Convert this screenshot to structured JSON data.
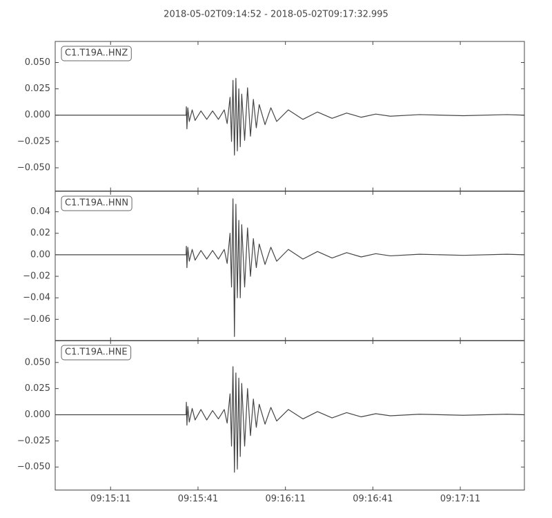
{
  "chart_data": [
    {
      "type": "line",
      "title": "2018-05-02T09:14:52  -  2018-05-02T09:17:32.995",
      "label": "C1.T19A..HNZ",
      "x": [
        0,
        44.9,
        45,
        45.2,
        45.5,
        46,
        47,
        48,
        50,
        52,
        54,
        56,
        58,
        59,
        60,
        60.5,
        61,
        61.5,
        62,
        62.5,
        63,
        63.5,
        64,
        65,
        66,
        67,
        68,
        69,
        70,
        72,
        74,
        76,
        80,
        85,
        90,
        95,
        100,
        105,
        110,
        115,
        125,
        140,
        155,
        160.995
      ],
      "values": [
        0,
        0,
        0.008,
        -0.013,
        0.007,
        -0.006,
        0.005,
        -0.005,
        0.004,
        -0.004,
        0.004,
        -0.004,
        0.005,
        -0.008,
        0.017,
        -0.025,
        0.033,
        -0.038,
        0.035,
        -0.034,
        0.025,
        -0.03,
        0.02,
        -0.024,
        0.026,
        -0.02,
        0.015,
        -0.012,
        0.01,
        -0.009,
        0.007,
        -0.006,
        0.005,
        -0.004,
        0.003,
        -0.003,
        0.002,
        -0.002,
        0.001,
        -0.001,
        0.0005,
        -0.0005,
        0.0005,
        0
      ],
      "color": "#444444",
      "xlim": [
        0,
        160.995
      ],
      "xticks": [
        19,
        49,
        79,
        109,
        139
      ],
      "ylim": [
        -0.072,
        0.07
      ],
      "yticks": [
        {
          "value": -0.05,
          "label": "−0.050"
        },
        {
          "value": -0.025,
          "label": "−0.025"
        },
        {
          "value": 0,
          "label": "0.000"
        },
        {
          "value": 0.025,
          "label": "0.025"
        },
        {
          "value": 0.05,
          "label": "0.050"
        }
      ]
    },
    {
      "type": "line",
      "label": "C1.T19A..HNN",
      "x": [
        0,
        44.9,
        45,
        45.2,
        45.5,
        46,
        47,
        48,
        50,
        52,
        54,
        56,
        58,
        59,
        60,
        60.5,
        61,
        61.5,
        62,
        62.5,
        63,
        63.5,
        64,
        65,
        66,
        67,
        68,
        69,
        70,
        72,
        74,
        76,
        80,
        85,
        90,
        95,
        100,
        105,
        110,
        115,
        125,
        140,
        155,
        160.995
      ],
      "values": [
        0,
        0,
        0.008,
        -0.012,
        0.007,
        -0.006,
        0.005,
        -0.005,
        0.004,
        -0.004,
        0.004,
        -0.004,
        0.005,
        -0.008,
        0.02,
        -0.03,
        0.052,
        -0.076,
        0.047,
        -0.04,
        0.032,
        -0.04,
        0.028,
        -0.03,
        0.025,
        -0.02,
        0.015,
        -0.012,
        0.01,
        -0.009,
        0.007,
        -0.006,
        0.005,
        -0.004,
        0.003,
        -0.003,
        0.002,
        -0.002,
        0.001,
        -0.001,
        0.0005,
        -0.0005,
        0.0005,
        0
      ],
      "color": "#444444",
      "xlim": [
        0,
        160.995
      ],
      "xticks": [
        19,
        49,
        79,
        109,
        139
      ],
      "ylim": [
        -0.08,
        0.059
      ],
      "yticks": [
        {
          "value": -0.06,
          "label": "−0.06"
        },
        {
          "value": -0.04,
          "label": "−0.04"
        },
        {
          "value": -0.02,
          "label": "−0.02"
        },
        {
          "value": 0,
          "label": "0.00"
        },
        0.02,
        0.04
      ]
    },
    {
      "type": "line",
      "label": "C1.T19A..HNE",
      "x": [
        0,
        44.9,
        45,
        45.2,
        45.5,
        46,
        47,
        48,
        50,
        52,
        54,
        56,
        58,
        59,
        60,
        60.5,
        61,
        61.5,
        62,
        62.5,
        63,
        63.5,
        64,
        65,
        66,
        67,
        68,
        69,
        70,
        72,
        74,
        76,
        80,
        85,
        90,
        95,
        100,
        105,
        110,
        115,
        125,
        140,
        155,
        160.995
      ],
      "values": [
        0,
        0,
        0.012,
        -0.01,
        0.008,
        -0.007,
        0.006,
        -0.005,
        0.005,
        -0.005,
        0.004,
        -0.004,
        0.005,
        -0.008,
        0.02,
        -0.03,
        0.046,
        -0.055,
        0.04,
        -0.052,
        0.035,
        -0.04,
        0.03,
        -0.03,
        0.025,
        -0.02,
        0.015,
        -0.012,
        0.01,
        -0.009,
        0.007,
        -0.006,
        0.005,
        -0.004,
        0.003,
        -0.003,
        0.002,
        -0.002,
        0.001,
        -0.001,
        0.0005,
        -0.0005,
        0.0005,
        0
      ],
      "color": "#444444",
      "xlim": [
        0,
        160.995
      ],
      "xticks": [
        {
          "value": 19,
          "label": "09:15:11"
        },
        {
          "value": 49,
          "label": "09:15:41"
        },
        {
          "value": 79,
          "label": "09:16:11"
        },
        {
          "value": 109,
          "label": "09:16:41"
        },
        {
          "value": 139,
          "label": "09:17:11"
        }
      ],
      "ylim": [
        -0.072,
        0.071
      ],
      "yticks": [
        {
          "value": -0.05,
          "label": "−0.050"
        },
        {
          "value": -0.025,
          "label": "−0.025"
        },
        {
          "value": 0,
          "label": "0.000"
        },
        {
          "value": 0.025,
          "label": "0.025"
        },
        {
          "value": 0.05,
          "label": "0.050"
        }
      ]
    }
  ]
}
